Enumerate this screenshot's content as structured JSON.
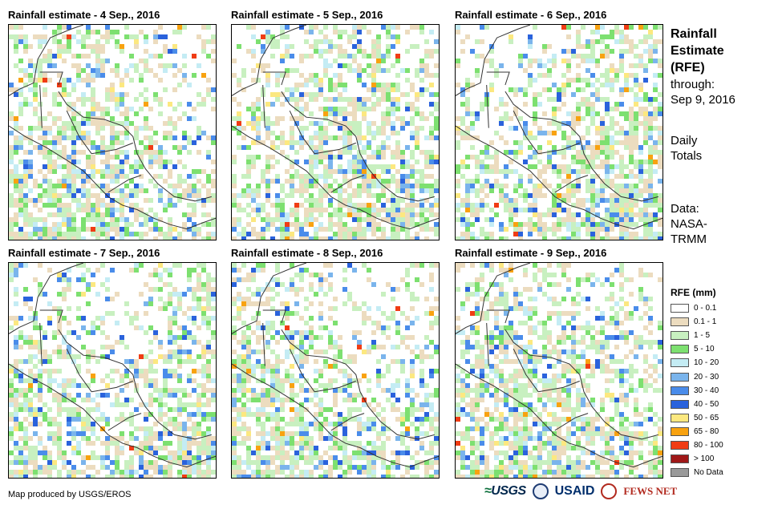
{
  "panels": [
    {
      "title": "Rainfall estimate - 4 Sep., 2016",
      "date": "4 Sep., 2016"
    },
    {
      "title": "Rainfall estimate - 5 Sep., 2016",
      "date": "5 Sep., 2016"
    },
    {
      "title": "Rainfall estimate - 6 Sep., 2016",
      "date": "6 Sep., 2016"
    },
    {
      "title": "Rainfall estimate - 7 Sep., 2016",
      "date": "7 Sep., 2016"
    },
    {
      "title": "Rainfall estimate - 8 Sep., 2016",
      "date": "8 Sep., 2016"
    },
    {
      "title": "Rainfall estimate - 9 Sep., 2016",
      "date": "9 Sep., 2016"
    }
  ],
  "side": {
    "title_line1": "Rainfall",
    "title_line2": "Estimate",
    "title_line3": "(RFE)",
    "through_label": "through:",
    "through_date": "Sep 9, 2016",
    "totals_line1": "Daily",
    "totals_line2": "Totals",
    "data_label": "Data:",
    "data_source_line1": "NASA-",
    "data_source_line2": "TRMM"
  },
  "legend": {
    "title": "RFE (mm)",
    "classes": [
      {
        "label": "0 - 0.1",
        "color": "#ffffff"
      },
      {
        "label": "0.1 - 1",
        "color": "#ecdcbf"
      },
      {
        "label": "1 - 5",
        "color": "#c8f0c0"
      },
      {
        "label": "5 - 10",
        "color": "#7de070"
      },
      {
        "label": "10 - 20",
        "color": "#c4ecf4"
      },
      {
        "label": "20 - 30",
        "color": "#7ab4ec"
      },
      {
        "label": "30 - 40",
        "color": "#4a8cea"
      },
      {
        "label": "40 - 50",
        "color": "#2a62dc"
      },
      {
        "label": "50 - 65",
        "color": "#fce880"
      },
      {
        "label": "65 - 80",
        "color": "#f8a210"
      },
      {
        "label": "80 - 100",
        "color": "#f03c14"
      },
      {
        "label": "> 100",
        "color": "#a01818"
      },
      {
        "label": "No Data",
        "color": "#9a9a9a"
      }
    ]
  },
  "footer": {
    "credit": "Map produced by USGS/EROS",
    "logos": {
      "usgs": "USGS",
      "usaid": "USAID",
      "fews": "FEWS NET"
    }
  }
}
